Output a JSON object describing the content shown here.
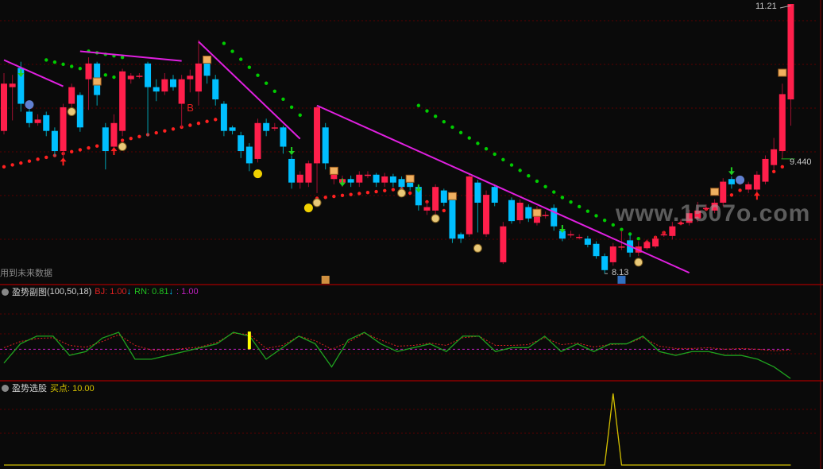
{
  "colors": {
    "up": "#ff1f4b",
    "down": "#00bfff",
    "green": "#00cc00",
    "magenta": "#e020e0",
    "grid": "#5a0000",
    "panel_border": "#8a0000",
    "sub_main": "#1fa31f",
    "sub_ref": "#e02020",
    "sub_level": "#c020c0",
    "buy_line": "#d4c000",
    "text": "#c8c8c8"
  },
  "main": {
    "warning": "用到未来数据",
    "high_label": "11.21",
    "last_label": "9.440",
    "low_label": "8.13",
    "watermark": "www.1507o.com"
  },
  "sub1": {
    "title": "盈势副图",
    "params": "(100,50,18)",
    "bj": "BJ: 1.00",
    "rn": "RN: 0.81",
    "third": ": 1.00",
    "arrow": "↓"
  },
  "sub2": {
    "title": "盈势选股",
    "buy": "买点: 10.00"
  },
  "chart_data": [
    {
      "type": "candlestick",
      "ylim": [
        8.1,
        11.25
      ],
      "grid": true,
      "candles": [
        [
          9.76,
          10.3,
          10.42,
          9.72
        ],
        [
          10.26,
          10.3,
          10.4,
          9.88
        ],
        [
          10.48,
          10.07,
          10.55,
          9.98
        ],
        [
          9.98,
          9.85,
          10.02,
          9.8
        ],
        [
          9.85,
          9.89,
          9.95,
          9.82
        ],
        [
          9.94,
          9.76,
          9.98,
          9.7
        ],
        [
          9.76,
          9.53,
          9.8,
          9.47
        ],
        [
          9.53,
          10.03,
          10.07,
          9.45
        ],
        [
          10.07,
          10.26,
          10.3,
          10.0
        ],
        [
          10.17,
          9.8,
          10.2,
          9.75
        ],
        [
          10.35,
          10.53,
          10.6,
          10.0
        ],
        [
          10.53,
          10.17,
          10.55,
          10.05
        ],
        [
          9.8,
          9.53,
          9.85,
          9.32
        ],
        [
          9.58,
          9.85,
          9.95,
          9.55
        ],
        [
          9.76,
          10.44,
          10.47,
          9.7
        ],
        [
          10.35,
          10.39,
          10.42,
          10.3
        ],
        [
          10.39,
          10.39,
          10.42,
          10.36
        ],
        [
          10.53,
          10.26,
          10.55,
          9.7
        ],
        [
          10.26,
          10.21,
          10.35,
          10.1
        ],
        [
          10.21,
          10.35,
          10.42,
          10.17
        ],
        [
          10.35,
          10.26,
          10.4,
          10.22
        ],
        [
          10.07,
          10.35,
          10.4,
          9.8
        ],
        [
          10.35,
          10.39,
          10.46,
          10.2
        ],
        [
          10.21,
          10.53,
          10.8,
          10.05
        ],
        [
          10.53,
          10.39,
          10.58,
          10.3
        ],
        [
          10.35,
          10.12,
          10.4,
          10.05
        ],
        [
          10.07,
          9.76,
          10.1,
          9.7
        ],
        [
          9.8,
          9.76,
          9.82,
          9.72
        ],
        [
          9.71,
          9.53,
          9.75,
          9.45
        ],
        [
          9.58,
          9.39,
          9.62,
          9.3
        ],
        [
          9.44,
          9.85,
          9.9,
          9.4
        ],
        [
          9.85,
          9.76,
          9.9,
          9.7
        ],
        [
          9.8,
          9.8,
          9.85,
          9.76
        ],
        [
          9.8,
          9.58,
          9.82,
          9.5
        ],
        [
          9.44,
          9.17,
          9.48,
          9.1
        ],
        [
          9.17,
          9.26,
          9.3,
          9.1
        ],
        [
          9.17,
          9.39,
          9.42,
          9.12
        ],
        [
          9.39,
          10.03,
          10.05,
          9.05
        ],
        [
          9.8,
          9.39,
          9.85,
          9.32
        ],
        [
          9.21,
          9.3,
          9.34,
          9.15
        ],
        [
          9.17,
          9.21,
          9.25,
          9.12
        ],
        [
          9.21,
          9.17,
          9.25,
          9.12
        ],
        [
          9.17,
          9.26,
          9.3,
          9.12
        ],
        [
          9.26,
          9.26,
          9.3,
          9.22
        ],
        [
          9.26,
          9.17,
          9.28,
          9.12
        ],
        [
          9.17,
          9.24,
          9.28,
          9.12
        ],
        [
          9.24,
          9.17,
          9.27,
          9.12
        ],
        [
          9.21,
          9.12,
          9.24,
          9.08
        ],
        [
          9.17,
          9.12,
          9.2,
          9.08
        ],
        [
          9.12,
          8.91,
          9.15,
          8.85
        ],
        [
          8.85,
          8.89,
          8.95,
          8.8
        ],
        [
          8.85,
          9.12,
          9.15,
          8.8
        ],
        [
          9.08,
          8.94,
          9.1,
          8.9
        ],
        [
          8.99,
          8.53,
          9.02,
          8.48
        ],
        [
          8.58,
          8.53,
          8.6,
          8.48
        ],
        [
          8.58,
          9.24,
          9.28,
          8.55
        ],
        [
          9.17,
          8.94,
          9.2,
          8.6
        ],
        [
          8.58,
          9.03,
          9.08,
          8.55
        ],
        [
          9.12,
          8.94,
          9.15,
          8.9
        ],
        [
          8.26,
          8.67,
          8.72,
          8.24
        ],
        [
          8.97,
          8.73,
          9.0,
          8.7
        ],
        [
          8.74,
          8.94,
          8.98,
          8.7
        ],
        [
          8.89,
          8.76,
          8.92,
          8.72
        ],
        [
          8.71,
          8.85,
          8.9,
          8.68
        ],
        [
          8.8,
          8.8,
          8.84,
          8.76
        ],
        [
          8.88,
          8.67,
          8.92,
          8.62
        ],
        [
          8.62,
          8.53,
          8.66,
          8.5
        ],
        [
          8.58,
          8.58,
          8.62,
          8.54
        ],
        [
          8.55,
          8.55,
          8.58,
          8.52
        ],
        [
          8.53,
          8.46,
          8.56,
          8.43
        ],
        [
          8.47,
          8.33,
          8.5,
          8.3
        ],
        [
          8.33,
          8.17,
          8.36,
          8.13
        ],
        [
          8.26,
          8.44,
          8.48,
          8.22
        ],
        [
          8.44,
          8.44,
          8.62,
          8.4
        ],
        [
          8.51,
          8.37,
          8.58,
          8.32
        ],
        [
          8.37,
          8.44,
          8.5,
          8.33
        ],
        [
          8.42,
          8.49,
          8.52,
          8.4
        ],
        [
          8.44,
          8.53,
          8.56,
          8.42
        ],
        [
          8.58,
          8.58,
          8.62,
          8.55
        ],
        [
          8.56,
          8.67,
          8.72,
          8.52
        ],
        [
          8.71,
          8.71,
          8.75,
          8.68
        ],
        [
          8.71,
          8.82,
          8.86,
          8.68
        ],
        [
          8.76,
          8.85,
          8.95,
          8.72
        ],
        [
          8.88,
          8.88,
          8.92,
          8.85
        ],
        [
          8.85,
          8.94,
          8.98,
          8.82
        ],
        [
          8.94,
          9.18,
          9.22,
          8.9
        ],
        [
          9.21,
          9.15,
          9.24,
          9.1
        ],
        [
          9.18,
          9.18,
          9.22,
          9.14
        ],
        [
          9.09,
          9.15,
          9.18,
          9.05
        ],
        [
          9.09,
          9.26,
          9.3,
          9.02
        ],
        [
          9.18,
          9.44,
          9.48,
          9.15
        ],
        [
          9.37,
          9.55,
          9.68,
          9.32
        ],
        [
          9.53,
          10.18,
          10.3,
          9.44
        ],
        [
          10.12,
          11.21,
          11.21,
          9.82
        ]
      ],
      "trend_lines": [
        [
          0,
          10.57,
          7,
          10.27
        ],
        [
          9,
          10.67,
          21,
          10.56
        ],
        [
          23,
          10.78,
          35,
          9.67
        ],
        [
          37,
          10.05,
          81,
          8.14
        ]
      ],
      "resistance_dots": [
        [
          5,
          10.57,
          14,
          10.35
        ],
        [
          10,
          10.67,
          14,
          10.6
        ],
        [
          26,
          10.76,
          35,
          9.94
        ],
        [
          49,
          10.05,
          66,
          9.0
        ],
        [
          66,
          9.0,
          75,
          8.53
        ]
      ],
      "support_dots": [
        [
          0,
          9.35,
          25,
          9.89
        ],
        [
          37,
          8.99,
          47,
          9.1
        ],
        [
          48,
          9.05,
          52,
          8.85
        ],
        [
          76,
          8.49,
          92,
          9.35
        ]
      ],
      "markers": [
        {
          "type": "money-bag",
          "i": 8,
          "p": 9.98
        },
        {
          "type": "money-bag",
          "i": 14,
          "p": 9.58
        },
        {
          "type": "money-bag",
          "i": 37,
          "p": 8.94
        },
        {
          "type": "money-bag",
          "i": 47,
          "p": 9.05
        },
        {
          "type": "money-bag",
          "i": 51,
          "p": 8.76
        },
        {
          "type": "money-bag",
          "i": 56,
          "p": 8.42
        },
        {
          "type": "money-bag",
          "i": 75,
          "p": 8.26
        },
        {
          "type": "smiley",
          "i": 30,
          "p": 9.27
        },
        {
          "type": "smiley",
          "i": 36,
          "p": 8.88
        },
        {
          "type": "sad-face",
          "i": 3,
          "p": 10.06
        },
        {
          "type": "sad-face",
          "i": 87,
          "p": 9.2
        },
        {
          "type": "sign",
          "i": 11,
          "p": 10.32
        },
        {
          "type": "sign",
          "i": 24,
          "p": 10.57
        },
        {
          "type": "sign",
          "i": 39,
          "p": 9.3
        },
        {
          "type": "sign",
          "i": 48,
          "p": 9.21
        },
        {
          "type": "sign",
          "i": 53,
          "p": 9.01
        },
        {
          "type": "sign",
          "i": 63,
          "p": 8.82
        },
        {
          "type": "sign",
          "i": 84,
          "p": 9.06
        },
        {
          "type": "sign",
          "i": 92,
          "p": 10.42
        },
        {
          "type": "up-arrow",
          "i": 7,
          "p": 9.41
        },
        {
          "type": "up-arrow",
          "i": 13,
          "p": 9.53
        },
        {
          "type": "up-arrow",
          "i": 89,
          "p": 9.02
        },
        {
          "type": "down-arrow",
          "i": 2,
          "p": 10.42
        },
        {
          "type": "down-arrow",
          "i": 34,
          "p": 9.53
        },
        {
          "type": "down-arrow",
          "i": 40,
          "p": 9.17
        },
        {
          "type": "down-arrow",
          "i": 49,
          "p": 9.1
        },
        {
          "type": "down-arrow",
          "i": 66,
          "p": 8.64
        },
        {
          "type": "down-arrow",
          "i": 86,
          "p": 9.3
        },
        {
          "type": "text-b",
          "i": 22,
          "p": 10.03,
          "label": "B"
        },
        {
          "type": "stamp",
          "i": 38,
          "p": 8.06
        },
        {
          "type": "stamp-cai",
          "i": 73,
          "p": 8.06
        }
      ]
    },
    {
      "type": "line",
      "ylim": [
        0.2,
        2.6
      ],
      "level": 1.0,
      "series_main": [
        0.64,
        1.14,
        1.34,
        1.34,
        0.84,
        0.94,
        1.29,
        1.44,
        0.74,
        0.74,
        0.84,
        0.94,
        1.04,
        1.14,
        1.44,
        1.34,
        0.74,
        1.04,
        1.34,
        1.14,
        0.54,
        1.24,
        1.44,
        1.14,
        0.94,
        1.04,
        1.14,
        0.94,
        1.34,
        1.34,
        0.94,
        1.04,
        1.04,
        1.34,
        0.94,
        1.14,
        0.94,
        1.14,
        1.14,
        1.34,
        0.94,
        0.84,
        0.94,
        0.94,
        0.84,
        0.84,
        0.74,
        0.54,
        0.24
      ],
      "series_ref": [
        1.04,
        1.2,
        1.28,
        1.3,
        1.1,
        1.05,
        1.2,
        1.38,
        1.1,
        0.98,
        0.98,
        1.02,
        1.06,
        1.18,
        1.42,
        1.38,
        1.02,
        1.1,
        1.34,
        1.22,
        1.0,
        1.18,
        1.42,
        1.24,
        1.08,
        1.1,
        1.16,
        1.1,
        1.3,
        1.34,
        1.1,
        1.1,
        1.12,
        1.3,
        1.12,
        1.16,
        1.06,
        1.12,
        1.14,
        1.3,
        1.08,
        1.02,
        1.02,
        1.04,
        1.0,
        1.02,
        1.0,
        0.96,
        0.98
      ],
      "marker_bar": {
        "i": 29,
        "from": 1.0,
        "to": 1.46
      }
    },
    {
      "type": "line",
      "ylim": [
        0,
        10
      ],
      "values_nonzero": [
        {
          "i": 72,
          "v": 10
        }
      ],
      "range": [
        0,
        93
      ]
    }
  ]
}
